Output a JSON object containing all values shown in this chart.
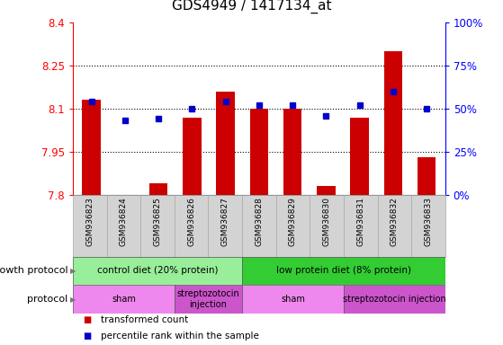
{
  "title": "GDS4949 / 1417134_at",
  "samples": [
    "GSM936823",
    "GSM936824",
    "GSM936825",
    "GSM936826",
    "GSM936827",
    "GSM936828",
    "GSM936829",
    "GSM936830",
    "GSM936831",
    "GSM936832",
    "GSM936833"
  ],
  "red_values": [
    8.13,
    7.8,
    7.84,
    8.07,
    8.16,
    8.1,
    8.1,
    7.83,
    8.07,
    8.3,
    7.93
  ],
  "blue_values": [
    54,
    43,
    44,
    50,
    54,
    52,
    52,
    46,
    52,
    60,
    50
  ],
  "ylim": [
    7.8,
    8.4
  ],
  "ylim_right": [
    0,
    100
  ],
  "yticks_left": [
    7.8,
    7.95,
    8.1,
    8.25,
    8.4
  ],
  "yticks_right": [
    0,
    25,
    50,
    75,
    100
  ],
  "ytick_labels_left": [
    "7.8",
    "7.95",
    "8.1",
    "8.25",
    "8.4"
  ],
  "ytick_labels_right": [
    "0%",
    "25%",
    "50%",
    "75%",
    "100%"
  ],
  "hlines": [
    7.95,
    8.1,
    8.25
  ],
  "bar_color": "#cc0000",
  "dot_color": "#0000cc",
  "bar_bottom": 7.8,
  "growth_protocol_label": "growth protocol",
  "protocol_label": "protocol",
  "growth_groups": [
    {
      "label": "control diet (20% protein)",
      "start": 0,
      "end": 5,
      "color": "#99ee99"
    },
    {
      "label": "low protein diet (8% protein)",
      "start": 5,
      "end": 11,
      "color": "#33cc33"
    }
  ],
  "protocol_groups": [
    {
      "label": "sham",
      "start": 0,
      "end": 3,
      "color": "#ee88ee"
    },
    {
      "label": "streptozotocin\ninjection",
      "start": 3,
      "end": 5,
      "color": "#cc55cc"
    },
    {
      "label": "sham",
      "start": 5,
      "end": 8,
      "color": "#ee88ee"
    },
    {
      "label": "streptozotocin injection",
      "start": 8,
      "end": 11,
      "color": "#cc55cc"
    }
  ],
  "legend_items": [
    {
      "label": "transformed count",
      "color": "#cc0000"
    },
    {
      "label": "percentile rank within the sample",
      "color": "#0000cc"
    }
  ],
  "title_fontsize": 11,
  "tick_fontsize": 8.5,
  "label_fontsize": 8
}
